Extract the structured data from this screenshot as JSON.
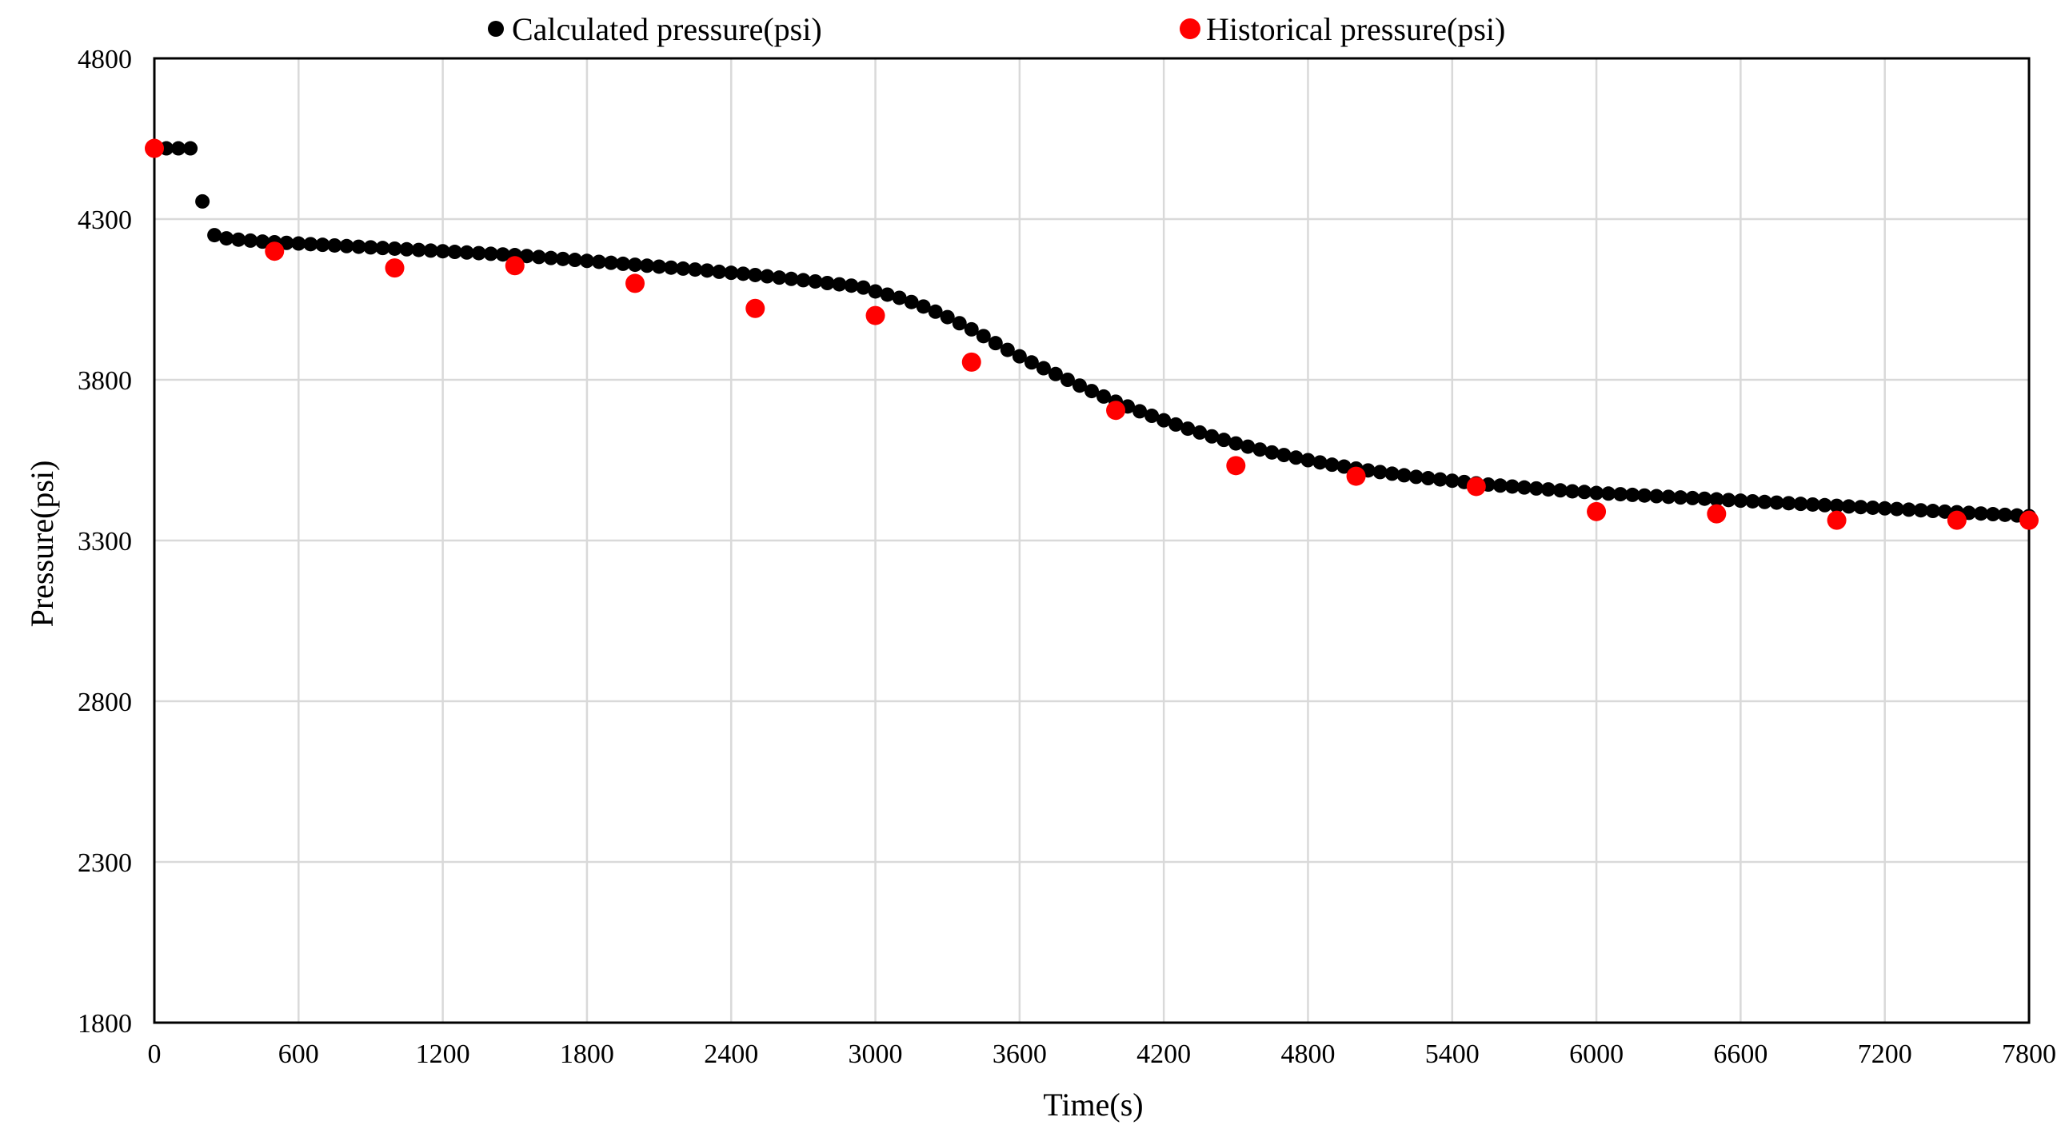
{
  "chart_data": {
    "type": "scatter",
    "title": "",
    "xlabel": "Time(s)",
    "ylabel": "Pressure(psi)",
    "xlim": [
      0,
      7800
    ],
    "ylim": [
      1800,
      4800
    ],
    "xticks": [
      0,
      600,
      1200,
      1800,
      2400,
      3000,
      3600,
      4200,
      4800,
      5400,
      6000,
      6600,
      7200,
      7800
    ],
    "yticks": [
      1800,
      2300,
      2800,
      3300,
      3800,
      4300,
      4800
    ],
    "grid": true,
    "legend_position": "top",
    "series": [
      {
        "name": "Calculated pressure(psi)",
        "color": "#000000",
        "marker": "small-circle",
        "x": [
          0,
          50,
          100,
          150,
          200,
          250,
          300,
          350,
          400,
          450,
          500,
          550,
          600,
          650,
          700,
          750,
          800,
          850,
          900,
          950,
          1000,
          1050,
          1100,
          1150,
          1200,
          1250,
          1300,
          1350,
          1400,
          1450,
          1500,
          1550,
          1600,
          1650,
          1700,
          1750,
          1800,
          1850,
          1900,
          1950,
          2000,
          2050,
          2100,
          2150,
          2200,
          2250,
          2300,
          2350,
          2400,
          2450,
          2500,
          2550,
          2600,
          2650,
          2700,
          2750,
          2800,
          2850,
          2900,
          2950,
          3000,
          3050,
          3100,
          3150,
          3200,
          3250,
          3300,
          3350,
          3400,
          3450,
          3500,
          3550,
          3600,
          3650,
          3700,
          3750,
          3800,
          3850,
          3900,
          3950,
          4000,
          4050,
          4100,
          4150,
          4200,
          4250,
          4300,
          4350,
          4400,
          4450,
          4500,
          4550,
          4600,
          4650,
          4700,
          4750,
          4800,
          4850,
          4900,
          4950,
          5000,
          5050,
          5100,
          5150,
          5200,
          5250,
          5300,
          5350,
          5400,
          5450,
          5500,
          5550,
          5600,
          5650,
          5700,
          5750,
          5800,
          5850,
          5900,
          5950,
          6000,
          6050,
          6100,
          6150,
          6200,
          6250,
          6300,
          6350,
          6400,
          6450,
          6500,
          6550,
          6600,
          6650,
          6700,
          6750,
          6800,
          6850,
          6900,
          6950,
          7000,
          7050,
          7100,
          7150,
          7200,
          7250,
          7300,
          7350,
          7400,
          7450,
          7500,
          7550,
          7600,
          7650,
          7700,
          7750,
          7800
        ],
        "y": [
          4520,
          4520,
          4520,
          4520,
          4355,
          4250,
          4240,
          4236,
          4233,
          4230,
          4228,
          4226,
          4224,
          4222,
          4220,
          4218,
          4216,
          4214,
          4212,
          4210,
          4208,
          4206,
          4204,
          4202,
          4200,
          4198,
          4196,
          4194,
          4192,
          4190,
          4188,
          4185,
          4182,
          4179,
          4176,
          4173,
          4170,
          4167,
          4164,
          4161,
          4158,
          4155,
          4152,
          4149,
          4146,
          4143,
          4140,
          4136,
          4133,
          4130,
          4126,
          4122,
          4118,
          4114,
          4110,
          4106,
          4101,
          4097,
          4093,
          4087,
          4075,
          4065,
          4055,
          4042,
          4028,
          4012,
          3995,
          3976,
          3957,
          3936,
          3914,
          3893,
          3873,
          3854,
          3836,
          3818,
          3800,
          3782,
          3765,
          3748,
          3732,
          3717,
          3702,
          3688,
          3674,
          3661,
          3648,
          3636,
          3624,
          3613,
          3602,
          3592,
          3583,
          3574,
          3566,
          3558,
          3550,
          3543,
          3536,
          3530,
          3524,
          3518,
          3513,
          3508,
          3503,
          3498,
          3494,
          3490,
          3486,
          3482,
          3478,
          3474,
          3471,
          3468,
          3465,
          3462,
          3459,
          3456,
          3453,
          3451,
          3448,
          3446,
          3444,
          3442,
          3440,
          3438,
          3436,
          3434,
          3432,
          3430,
          3428,
          3426,
          3424,
          3422,
          3420,
          3418,
          3416,
          3414,
          3412,
          3410,
          3408,
          3406,
          3404,
          3402,
          3400,
          3398,
          3396,
          3394,
          3392,
          3390,
          3388,
          3386,
          3384,
          3382,
          3380,
          3378,
          3376
        ]
      },
      {
        "name": "Historical pressure(psi)",
        "color": "#ff0000",
        "marker": "large-circle",
        "x": [
          0,
          500,
          1000,
          1500,
          2000,
          2500,
          3000,
          3400,
          4000,
          4500,
          5000,
          5500,
          6000,
          6500,
          7000,
          7500,
          7800
        ],
        "y": [
          4520,
          4200,
          4148,
          4155,
          4100,
          4022,
          4000,
          3855,
          3705,
          3533,
          3500,
          3468,
          3390,
          3383,
          3363,
          3363,
          3363
        ]
      }
    ]
  }
}
